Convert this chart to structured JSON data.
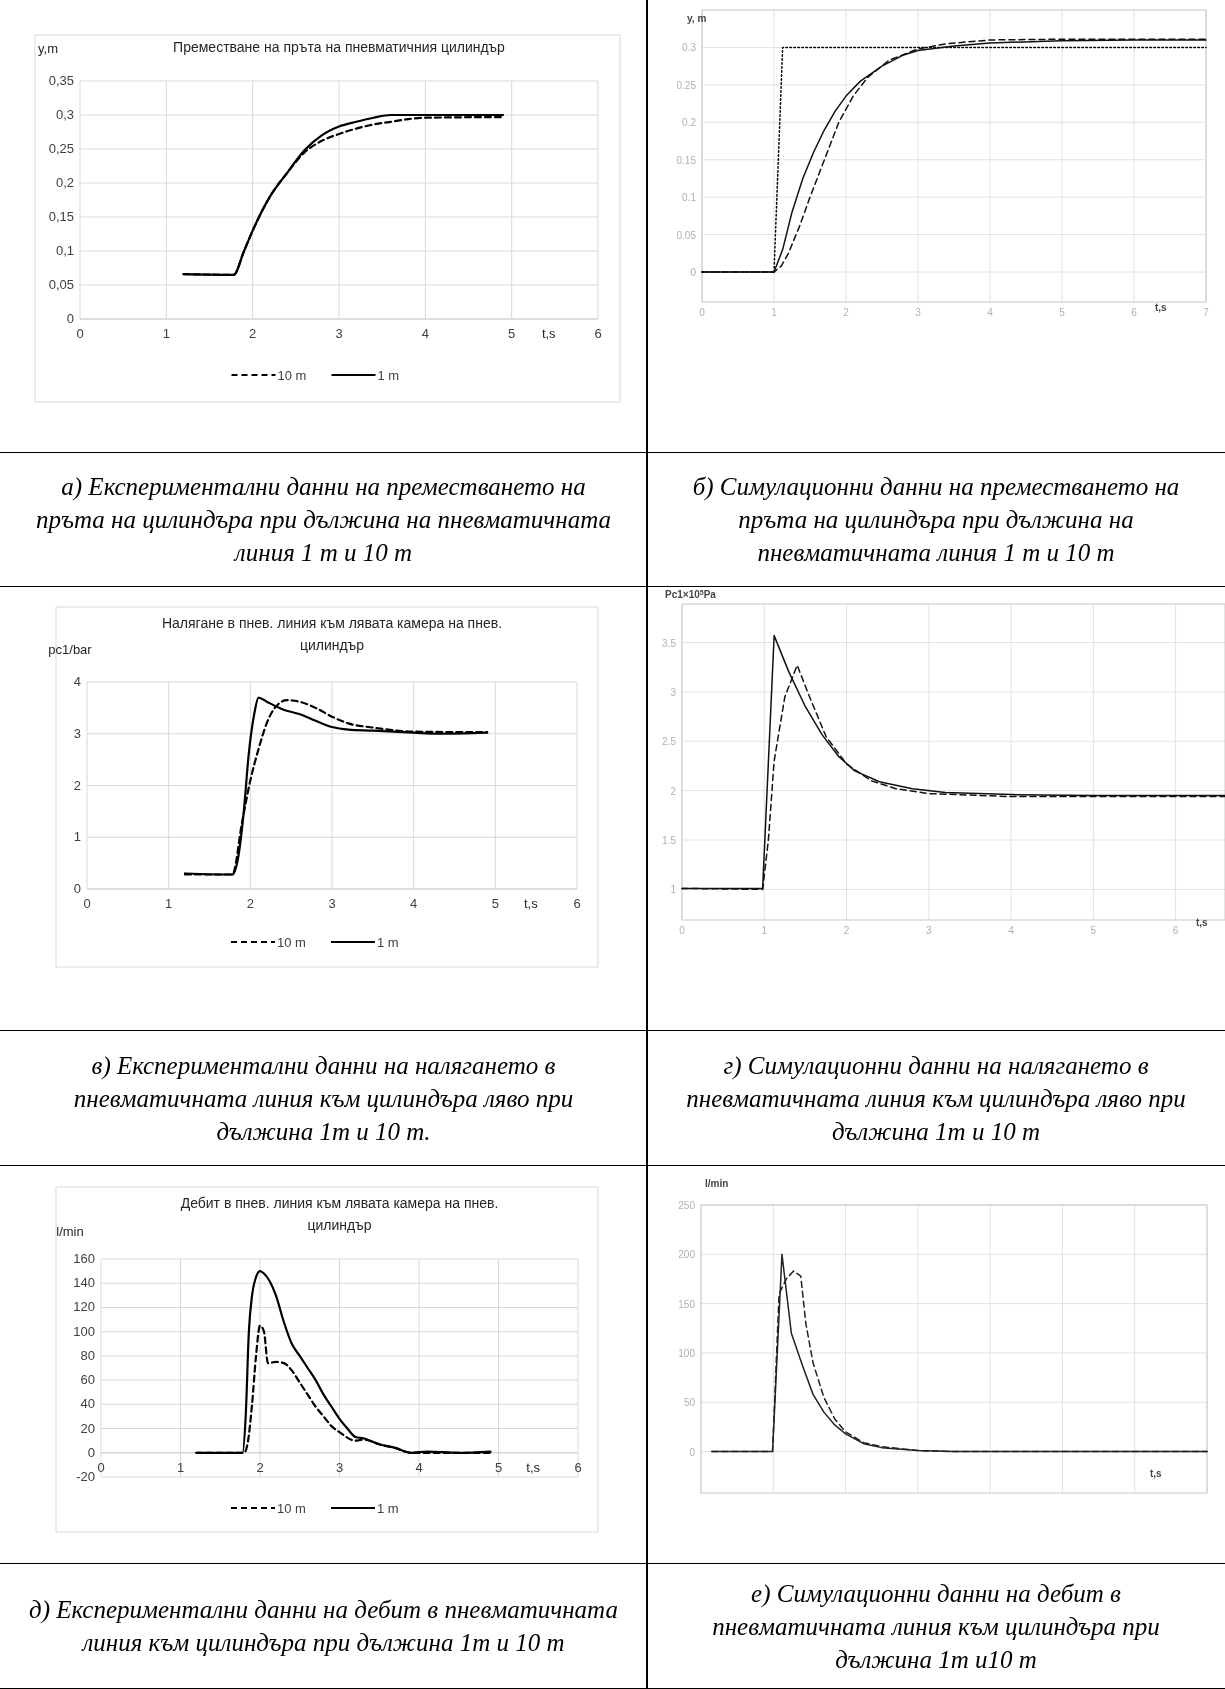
{
  "chart_data": [
    {
      "type": "line",
      "title": "Преместване на пръта на пневматичния цилиндър",
      "ylabel": "y,m",
      "xlabel": "t,s",
      "xlim": [
        0,
        6
      ],
      "xticks": [
        0,
        1,
        2,
        3,
        4,
        5,
        6
      ],
      "ylim": [
        0,
        0.35
      ],
      "yticks": [
        {
          "value": 0,
          "label": "0"
        },
        {
          "value": 0.05,
          "label": "0,05"
        },
        {
          "value": 0.1,
          "label": "0,1"
        },
        {
          "value": 0.15,
          "label": "0,15"
        },
        {
          "value": 0.2,
          "label": "0,2"
        },
        {
          "value": 0.25,
          "label": "0,25"
        },
        {
          "value": 0.3,
          "label": "0,3"
        },
        {
          "value": 0.35,
          "label": "0,35"
        }
      ],
      "grid": true,
      "legend": "bottom",
      "annotations": [
        "а) Експериментални данни на преместването на пръта на цилиндъра при дължина на пневматичната линия 1 m и 10 m"
      ],
      "series": [
        {
          "name": "10 m",
          "color": "#000000",
          "line_style": "dashed",
          "x": [
            1.2,
            1.78,
            1.9,
            2.0,
            2.2,
            2.4,
            2.6,
            2.8,
            3.0,
            3.2,
            3.4,
            3.6,
            3.8,
            4.0,
            4.9
          ],
          "values": [
            0.066,
            0.065,
            0.1,
            0.13,
            0.18,
            0.215,
            0.245,
            0.262,
            0.272,
            0.28,
            0.286,
            0.29,
            0.294,
            0.296,
            0.297
          ]
        },
        {
          "name": "1 m",
          "color": "#000000",
          "line_style": "solid",
          "x": [
            1.2,
            1.78,
            1.9,
            2.0,
            2.2,
            2.4,
            2.6,
            2.8,
            3.0,
            3.2,
            3.4,
            3.6,
            4.0,
            4.9
          ],
          "values": [
            0.066,
            0.065,
            0.1,
            0.13,
            0.18,
            0.215,
            0.248,
            0.27,
            0.283,
            0.29,
            0.296,
            0.3,
            0.3,
            0.3
          ]
        }
      ]
    },
    {
      "type": "line",
      "ylabel": "y,   m",
      "xlabel": "t,s",
      "xlim": [
        0,
        7
      ],
      "xticks": [
        0,
        1,
        2,
        3,
        4,
        5,
        6,
        7
      ],
      "ylim": [
        -0.04,
        0.35
      ],
      "yticks": [
        0,
        0.05,
        0.1,
        0.15,
        0.2,
        0.25,
        0.3
      ],
      "grid": true,
      "annotations": [
        "б) Симулационни данни на преместването на пръта на цилиндъра при дължина на пневматичната линия 1 m и 10 m"
      ],
      "series": [
        {
          "color": "#000000",
          "line_style": "dotted",
          "x": [
            0,
            1,
            1.12,
            7
          ],
          "values": [
            0,
            0,
            0.3,
            0.3
          ]
        },
        {
          "color": "#111111",
          "line_style": "solid",
          "x": [
            0,
            1,
            1.12,
            1.25,
            1.4,
            1.55,
            1.7,
            1.85,
            2,
            2.2,
            2.5,
            2.8,
            3,
            3.5,
            4,
            5,
            6,
            7
          ],
          "values": [
            0,
            0,
            0.03,
            0.08,
            0.125,
            0.16,
            0.19,
            0.215,
            0.235,
            0.255,
            0.275,
            0.29,
            0.296,
            0.302,
            0.306,
            0.309,
            0.31,
            0.31
          ]
        },
        {
          "color": "#111111",
          "line_style": "dashed",
          "x": [
            0,
            1,
            1.1,
            1.2,
            1.35,
            1.5,
            1.7,
            1.9,
            2.1,
            2.3,
            2.6,
            3,
            3.4,
            4,
            5,
            7
          ],
          "values": [
            0,
            0,
            0.008,
            0.025,
            0.06,
            0.1,
            0.15,
            0.2,
            0.235,
            0.26,
            0.283,
            0.298,
            0.305,
            0.31,
            0.311,
            0.311
          ]
        }
      ]
    },
    {
      "type": "line",
      "title": "Налягане в пнев. линия към лявата камера на пнев. цилиндър",
      "ylabel": "pc1/bar",
      "xlabel": "t,s",
      "xlim": [
        0,
        6
      ],
      "xticks": [
        0,
        1,
        2,
        3,
        4,
        5,
        6
      ],
      "ylim": [
        0,
        4
      ],
      "yticks": [
        0,
        1,
        2,
        3,
        4
      ],
      "grid": true,
      "legend": "bottom",
      "annotations": [
        "в) Експериментални данни на налягането в пневматичната линия към цилиндъра ляво при дължина 1m и 10 m."
      ],
      "series": [
        {
          "name": "10 m",
          "color": "#000000",
          "line_style": "dashed",
          "x": [
            1.2,
            1.78,
            1.9,
            2.0,
            2.1,
            2.2,
            2.3,
            2.45,
            2.6,
            2.8,
            3.0,
            3.2,
            3.5,
            4,
            4.9
          ],
          "values": [
            0.28,
            0.28,
            1.3,
            2.1,
            2.7,
            3.2,
            3.5,
            3.65,
            3.62,
            3.5,
            3.33,
            3.2,
            3.12,
            3.04,
            3.03
          ]
        },
        {
          "name": "1 m",
          "color": "#000000",
          "line_style": "solid",
          "x": [
            1.2,
            1.78,
            1.85,
            1.92,
            1.98,
            2.05,
            2.1,
            2.2,
            2.4,
            2.6,
            2.8,
            3.0,
            3.2,
            3.5,
            4,
            4.3,
            4.9
          ],
          "values": [
            0.3,
            0.28,
            0.6,
            1.5,
            2.6,
            3.4,
            3.7,
            3.62,
            3.47,
            3.38,
            3.25,
            3.13,
            3.08,
            3.06,
            3.02,
            3.0,
            3.02
          ]
        }
      ]
    },
    {
      "type": "line",
      "ylabel": "Pc1×10$^{5}$Pa",
      "xlabel": "t,s",
      "xlim": [
        0,
        6.6
      ],
      "xticks": [
        0,
        1,
        2,
        3,
        4,
        5,
        6
      ],
      "ylim": [
        0.69,
        3.89
      ],
      "yticks": [
        1,
        1.5,
        2,
        2.5,
        3,
        3.5
      ],
      "grid": true,
      "annotations": [
        "г) Симулационни данни на налягането в пневматичната линия към цилиндъра ляво при дължина 1m и 10 m"
      ],
      "series": [
        {
          "color": "#111111",
          "line_style": "solid",
          "x": [
            0,
            0.98,
            1.12,
            1.3,
            1.5,
            1.7,
            1.9,
            2.1,
            2.4,
            2.8,
            3.2,
            4,
            5,
            6.6
          ],
          "values": [
            1.01,
            1.01,
            3.57,
            3.2,
            2.85,
            2.57,
            2.35,
            2.2,
            2.09,
            2.02,
            1.98,
            1.96,
            1.95,
            1.95
          ]
        },
        {
          "color": "#111111",
          "line_style": "dashed",
          "x": [
            0,
            0.98,
            1.05,
            1.12,
            1.25,
            1.4,
            1.55,
            1.75,
            2,
            2.3,
            2.6,
            3,
            4,
            6.6
          ],
          "values": [
            1.01,
            1.0,
            1.5,
            2.3,
            2.95,
            3.27,
            2.95,
            2.55,
            2.27,
            2.1,
            2.02,
            1.97,
            1.94,
            1.94
          ]
        }
      ]
    },
    {
      "type": "line",
      "title": "Дебит в пнев. линия към лявата камера на пнев. цилиндър",
      "ylabel": "l/min",
      "xlabel": "t,s",
      "xlim": [
        0,
        6
      ],
      "xticks": [
        0,
        1,
        2,
        3,
        4,
        5,
        6
      ],
      "ylim": [
        -20,
        160
      ],
      "yticks": [
        -20,
        0,
        20,
        40,
        60,
        80,
        100,
        120,
        140,
        160
      ],
      "grid": true,
      "legend": "bottom",
      "annotations": [
        "д) Експериментални данни на дебит в пневматичната линия към цилиндъра при дължина 1m и 10 m"
      ],
      "series": [
        {
          "name": "10 m",
          "color": "#000000",
          "line_style": "dashed",
          "x": [
            1.2,
            1.8,
            1.85,
            1.9,
            1.95,
            2.0,
            2.05,
            2.1,
            2.2,
            2.3,
            2.4,
            2.5,
            2.6,
            2.7,
            2.8,
            2.9,
            3.0,
            3.2,
            3.3,
            3.5,
            3.7,
            3.9,
            4.1,
            4.9
          ],
          "values": [
            0,
            0,
            10,
            40,
            80,
            105,
            100,
            74,
            75,
            74,
            68,
            58,
            48,
            38,
            30,
            22,
            17,
            10,
            11,
            7,
            4,
            0,
            0,
            0
          ]
        },
        {
          "name": "1 m",
          "color": "#000000",
          "line_style": "solid",
          "x": [
            1.2,
            1.78,
            1.82,
            1.86,
            1.9,
            1.95,
            2.0,
            2.05,
            2.2,
            2.3,
            2.4,
            2.5,
            2.6,
            2.7,
            2.8,
            2.9,
            3.0,
            3.1,
            3.2,
            3.3,
            3.5,
            3.7,
            3.9,
            4.1,
            4.5,
            4.9
          ],
          "values": [
            0,
            0,
            30,
            100,
            130,
            145,
            150,
            148,
            130,
            108,
            90,
            80,
            70,
            60,
            48,
            38,
            28,
            20,
            13,
            12,
            7,
            4,
            0,
            1,
            0,
            1
          ]
        }
      ]
    },
    {
      "type": "line",
      "ylabel": "l/min",
      "xlabel": "t,s",
      "xlim": [
        0,
        7
      ],
      "xticks": [
        {
          "value": 0,
          "label": null
        },
        {
          "value": 1,
          "label": null
        },
        {
          "value": 2,
          "label": null
        },
        {
          "value": 3,
          "label": null
        },
        {
          "value": 4,
          "label": null
        },
        {
          "value": 5,
          "label": null
        },
        {
          "value": 6,
          "label": null
        },
        {
          "value": 7,
          "label": null
        }
      ],
      "tick_labels": "y",
      "ylim": [
        -42,
        250
      ],
      "yticks": [
        0,
        50,
        100,
        150,
        200,
        250
      ],
      "grid": true,
      "annotations": [
        "е) Симулационни данни на дебит в пневматичната линия към цилиндъра при дължина 1m и10 m"
      ],
      "series": [
        {
          "color": "#222222",
          "line_style": "solid",
          "x": [
            0.15,
            0.99,
            1.12,
            1.25,
            1.4,
            1.55,
            1.7,
            1.85,
            2,
            2.25,
            2.5,
            3,
            3.5,
            7
          ],
          "values": [
            0,
            0,
            200,
            120,
            88,
            58,
            40,
            27,
            18,
            8,
            4,
            1,
            0,
            0
          ]
        },
        {
          "color": "#222222",
          "line_style": "dashed",
          "x": [
            0.15,
            0.99,
            1.08,
            1.18,
            1.28,
            1.38,
            1.45,
            1.55,
            1.7,
            1.85,
            2,
            2.25,
            2.5,
            3,
            3.5,
            7
          ],
          "values": [
            0,
            0,
            160,
            175,
            183,
            178,
            130,
            90,
            55,
            33,
            20,
            9,
            5,
            1,
            0,
            0
          ]
        }
      ]
    }
  ]
}
